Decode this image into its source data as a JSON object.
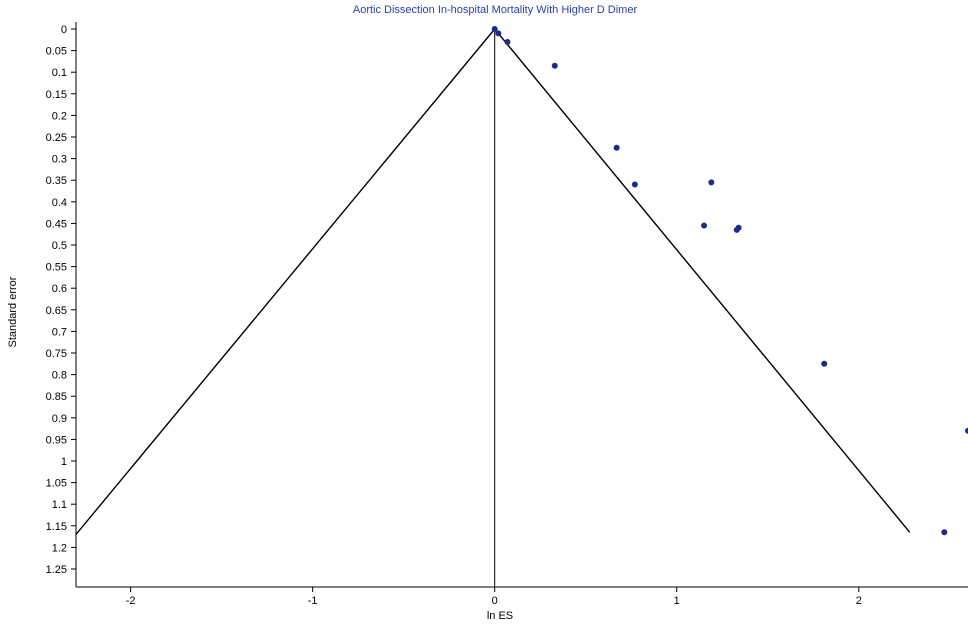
{
  "chart_data": {
    "type": "scatter",
    "title": "Aortic Dissection In-hospital Mortality With Higher D Dimer",
    "xlabel": "ln ES",
    "ylabel": "Standard error",
    "xlim": [
      -2.3,
      2.6
    ],
    "ylim": [
      0,
      1.28
    ],
    "y_inverted": true,
    "x_ticks": [
      {
        "value": -2,
        "label": "-2"
      },
      {
        "value": -1,
        "label": "-1"
      },
      {
        "value": 0,
        "label": "0"
      },
      {
        "value": 1,
        "label": "1"
      },
      {
        "value": 2,
        "label": "2"
      }
    ],
    "y_ticks": [
      {
        "value": 0,
        "label": "0"
      },
      {
        "value": 0.05,
        "label": "0.05"
      },
      {
        "value": 0.1,
        "label": "0.1"
      },
      {
        "value": 0.15,
        "label": "0.15"
      },
      {
        "value": 0.2,
        "label": "0.2"
      },
      {
        "value": 0.25,
        "label": "0.25"
      },
      {
        "value": 0.3,
        "label": "0.3"
      },
      {
        "value": 0.35,
        "label": "0.35"
      },
      {
        "value": 0.4,
        "label": "0.4"
      },
      {
        "value": 0.45,
        "label": "0.45"
      },
      {
        "value": 0.5,
        "label": "0.5"
      },
      {
        "value": 0.55,
        "label": "0.55"
      },
      {
        "value": 0.6,
        "label": "0.6"
      },
      {
        "value": 0.65,
        "label": "0.65"
      },
      {
        "value": 0.7,
        "label": "0.7"
      },
      {
        "value": 0.75,
        "label": "0.75"
      },
      {
        "value": 0.8,
        "label": "0.8"
      },
      {
        "value": 0.85,
        "label": "0.85"
      },
      {
        "value": 0.9,
        "label": "0.9"
      },
      {
        "value": 0.95,
        "label": "0.95"
      },
      {
        "value": 1,
        "label": "1"
      },
      {
        "value": 1.05,
        "label": "1.05"
      },
      {
        "value": 1.1,
        "label": "1.1"
      },
      {
        "value": 1.15,
        "label": "1.15"
      },
      {
        "value": 1.2,
        "label": "1.2"
      },
      {
        "value": 1.25,
        "label": "1.25"
      }
    ],
    "points": [
      {
        "x": 0.0,
        "y": 0.0
      },
      {
        "x": 0.02,
        "y": 0.01
      },
      {
        "x": 0.07,
        "y": 0.03
      },
      {
        "x": 0.33,
        "y": 0.085
      },
      {
        "x": 0.67,
        "y": 0.275
      },
      {
        "x": 0.77,
        "y": 0.36
      },
      {
        "x": 1.19,
        "y": 0.355
      },
      {
        "x": 1.15,
        "y": 0.455
      },
      {
        "x": 1.33,
        "y": 0.465
      },
      {
        "x": 1.34,
        "y": 0.46
      },
      {
        "x": 1.81,
        "y": 0.775
      },
      {
        "x": 2.47,
        "y": 1.165
      },
      {
        "x": 2.6,
        "y": 0.93
      }
    ],
    "funnel_limits": {
      "apex": {
        "x": 0,
        "y": 0
      },
      "left_end": {
        "x": -2.3,
        "y": 1.17
      },
      "right_end": {
        "x": 2.28,
        "y": 1.165
      }
    },
    "reference_line_x": 0,
    "colors": {
      "points": "#1f2a8a",
      "title": "#2a3fa8",
      "lines": "#000000"
    }
  }
}
